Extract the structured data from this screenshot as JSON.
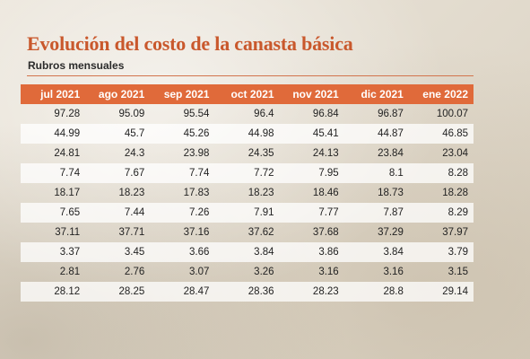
{
  "title": "Evolución del costo de la canasta básica",
  "subtitle": "Rubros mensuales",
  "colors": {
    "accent": "#e06a3a",
    "title": "#c9582c"
  },
  "chart_data": {
    "type": "table",
    "title": "Evolución del costo de la canasta básica",
    "subtitle": "Rubros mensuales",
    "columns": [
      "jul 2021",
      "ago 2021",
      "sep 2021",
      "oct 2021",
      "nov 2021",
      "dic 2021",
      "ene 2022"
    ],
    "rows": [
      [
        "97.28",
        "95.09",
        "95.54",
        "96.4",
        "96.84",
        "96.87",
        "100.07"
      ],
      [
        "44.99",
        "45.7",
        "45.26",
        "44.98",
        "45.41",
        "44.87",
        "46.85"
      ],
      [
        "24.81",
        "24.3",
        "23.98",
        "24.35",
        "24.13",
        "23.84",
        "23.04"
      ],
      [
        "7.74",
        "7.67",
        "7.74",
        "7.72",
        "7.95",
        "8.1",
        "8.28"
      ],
      [
        "18.17",
        "18.23",
        "17.83",
        "18.23",
        "18.46",
        "18.73",
        "18.28"
      ],
      [
        "7.65",
        "7.44",
        "7.26",
        "7.91",
        "7.77",
        "7.87",
        "8.29"
      ],
      [
        "37.11",
        "37.71",
        "37.16",
        "37.62",
        "37.68",
        "37.29",
        "37.97"
      ],
      [
        "3.37",
        "3.45",
        "3.66",
        "3.84",
        "3.86",
        "3.84",
        "3.79"
      ],
      [
        "2.81",
        "2.76",
        "3.07",
        "3.26",
        "3.16",
        "3.16",
        "3.15"
      ],
      [
        "28.12",
        "28.25",
        "28.47",
        "28.36",
        "28.23",
        "28.8",
        "29.14"
      ]
    ]
  }
}
